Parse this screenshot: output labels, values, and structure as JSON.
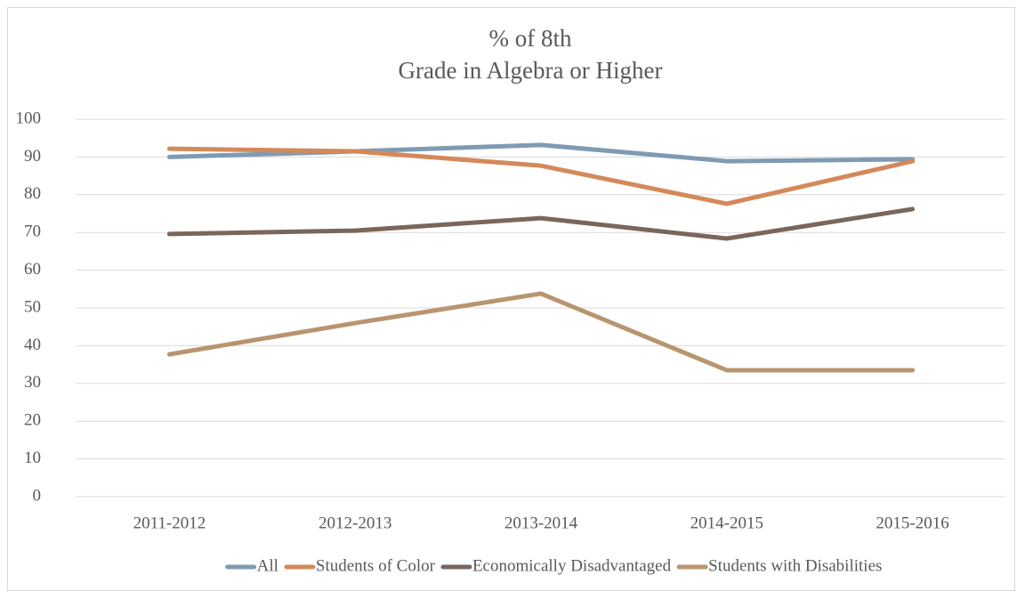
{
  "chart_data": {
    "type": "line",
    "title": [
      "% of 8th",
      "Grade in Algebra or Higher"
    ],
    "categories": [
      "2011-2012",
      "2012-2013",
      "2013-2014",
      "2014-2015",
      "2015-2016"
    ],
    "series": [
      {
        "name": "All",
        "color": "#7f9bb3",
        "values": [
          90,
          91.5,
          93.2,
          88.9,
          89.4
        ]
      },
      {
        "name": "Students of Color",
        "color": "#d4895a",
        "values": [
          92.2,
          91.5,
          87.7,
          77.6,
          88.9
        ]
      },
      {
        "name": "Economically Disadvantaged",
        "color": "#7a675a",
        "values": [
          69.6,
          70.5,
          73.8,
          68.4,
          76.2
        ]
      },
      {
        "name": "Students with Disabilities",
        "color": "#b89570",
        "values": [
          37.7,
          46,
          53.8,
          33.5,
          33.5
        ]
      }
    ],
    "ylim": [
      0,
      100
    ],
    "yticks": [
      0,
      10,
      20,
      30,
      40,
      50,
      60,
      70,
      80,
      90,
      100
    ],
    "grid": true,
    "legend": "bottom"
  }
}
